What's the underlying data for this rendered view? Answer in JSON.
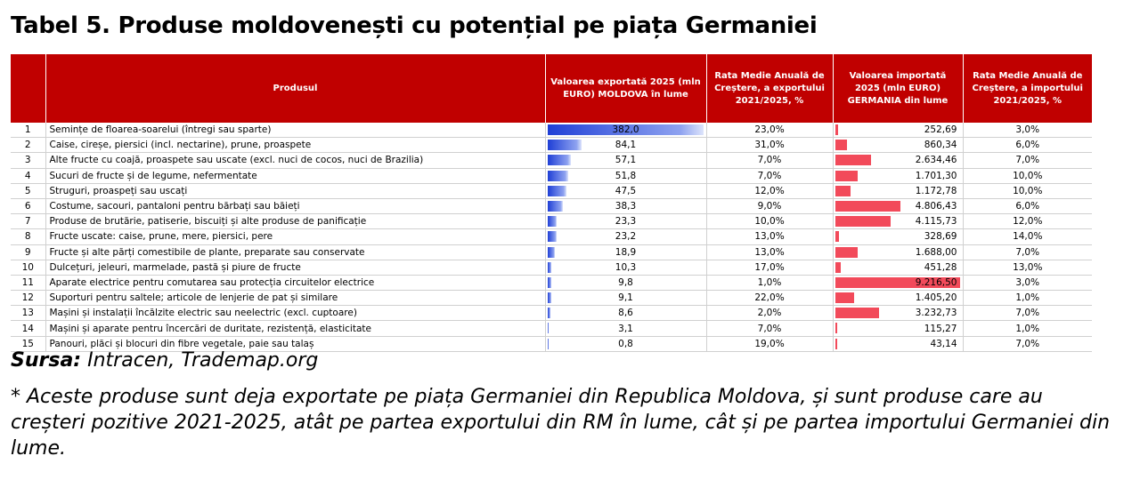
{
  "title": "Tabel 5. Produse moldovenești cu potențial pe piața Germaniei",
  "colors": {
    "header_bg": "#c00000",
    "export_bar": "#1f3fd6",
    "import_bar": "#f24a5a"
  },
  "table": {
    "headers": {
      "no": "",
      "product": "Produsul",
      "export": "Valoarea exportată 2025 (mln EURO) MOLDOVA în lume",
      "export_rate": "Rata Medie Anuală de Creștere, a exportului 2021/2025, %",
      "import": "Valoarea importată 2025 (mln EURO) GERMANIA din lume",
      "import_rate": "Rata Medie Anuală de Creștere, a importului 2021/2025, %"
    },
    "rows": [
      {
        "no": "1",
        "product": "Semințe de floarea-soarelui (întregi sau sparte)",
        "export": "382,0",
        "export_value": 382.0,
        "export_rate": "23,0%",
        "import": "252,69",
        "import_value": 252.69,
        "import_rate": "3,0%"
      },
      {
        "no": "2",
        "product": "Caise, cireșe, piersici (incl. nectarine), prune, proaspete",
        "export": "84,1",
        "export_value": 84.1,
        "export_rate": "31,0%",
        "import": "860,34",
        "import_value": 860.34,
        "import_rate": "6,0%"
      },
      {
        "no": "3",
        "product": "Alte fructe cu coajă, proaspete sau uscate (excl. nuci de cocos, nuci de Brazilia)",
        "export": "57,1",
        "export_value": 57.1,
        "export_rate": "7,0%",
        "import": "2.634,46",
        "import_value": 2634.46,
        "import_rate": "7,0%"
      },
      {
        "no": "4",
        "product": "Sucuri de fructe și de legume, nefermentate",
        "export": "51,8",
        "export_value": 51.8,
        "export_rate": "7,0%",
        "import": "1.701,30",
        "import_value": 1701.3,
        "import_rate": "10,0%"
      },
      {
        "no": "5",
        "product": "Struguri, proaspeți sau uscați",
        "export": "47,5",
        "export_value": 47.5,
        "export_rate": "12,0%",
        "import": "1.172,78",
        "import_value": 1172.78,
        "import_rate": "10,0%"
      },
      {
        "no": "6",
        "product": "Costume, sacouri, pantaloni pentru bărbați sau băieți",
        "export": "38,3",
        "export_value": 38.3,
        "export_rate": "9,0%",
        "import": "4.806,43",
        "import_value": 4806.43,
        "import_rate": "6,0%"
      },
      {
        "no": "7",
        "product": "Produse de brutărie, patiserie, biscuiți și alte produse de panificație",
        "export": "23,3",
        "export_value": 23.3,
        "export_rate": "10,0%",
        "import": "4.115,73",
        "import_value": 4115.73,
        "import_rate": "12,0%"
      },
      {
        "no": "8",
        "product": "Fructe uscate: caise, prune, mere, piersici, pere",
        "export": "23,2",
        "export_value": 23.2,
        "export_rate": "13,0%",
        "import": "328,69",
        "import_value": 328.69,
        "import_rate": "14,0%"
      },
      {
        "no": "9",
        "product": "Fructe și alte părți comestibile de plante, preparate sau conservate",
        "export": "18,9",
        "export_value": 18.9,
        "export_rate": "13,0%",
        "import": "1.688,00",
        "import_value": 1688.0,
        "import_rate": "7,0%"
      },
      {
        "no": "10",
        "product": "Dulcețuri, jeleuri, marmelade, pastă și piure de fructe",
        "export": "10,3",
        "export_value": 10.3,
        "export_rate": "17,0%",
        "import": "451,28",
        "import_value": 451.28,
        "import_rate": "13,0%"
      },
      {
        "no": "11",
        "product": "Aparate electrice pentru comutarea sau protecția circuitelor electrice",
        "export": "9,8",
        "export_value": 9.8,
        "export_rate": "1,0%",
        "import": "9.216,50",
        "import_value": 9216.5,
        "import_rate": "3,0%"
      },
      {
        "no": "12",
        "product": "Suporturi pentru saltele; articole de lenjerie de pat și similare",
        "export": "9,1",
        "export_value": 9.1,
        "export_rate": "22,0%",
        "import": "1.405,20",
        "import_value": 1405.2,
        "import_rate": "1,0%"
      },
      {
        "no": "13",
        "product": "Mașini și instalații încălzite electric sau neelectric (excl. cuptoare)",
        "export": "8,6",
        "export_value": 8.6,
        "export_rate": "2,0%",
        "import": "3.232,73",
        "import_value": 3232.73,
        "import_rate": "7,0%"
      },
      {
        "no": "14",
        "product": "Mașini și aparate pentru încercări de duritate, rezistență, elasticitate",
        "export": "3,1",
        "export_value": 3.1,
        "export_rate": "7,0%",
        "import": "115,27",
        "import_value": 115.27,
        "import_rate": "1,0%"
      },
      {
        "no": "15",
        "product": "Panouri, plăci și blocuri din fibre vegetale, paie sau talaș",
        "export": "0,8",
        "export_value": 0.8,
        "export_rate": "19,0%",
        "import": "43,14",
        "import_value": 43.14,
        "import_rate": "7,0%"
      }
    ]
  },
  "source": {
    "label": "Sursa:",
    "text": "Intracen, Trademap.org"
  },
  "note": "* Aceste produse sunt deja exportate pe piața Germaniei din Republica Moldova, și sunt produse care au creșteri pozitive 2021-2025, atât pe partea exportului din RM în lume, cât și pe partea importului Germaniei din lume."
}
